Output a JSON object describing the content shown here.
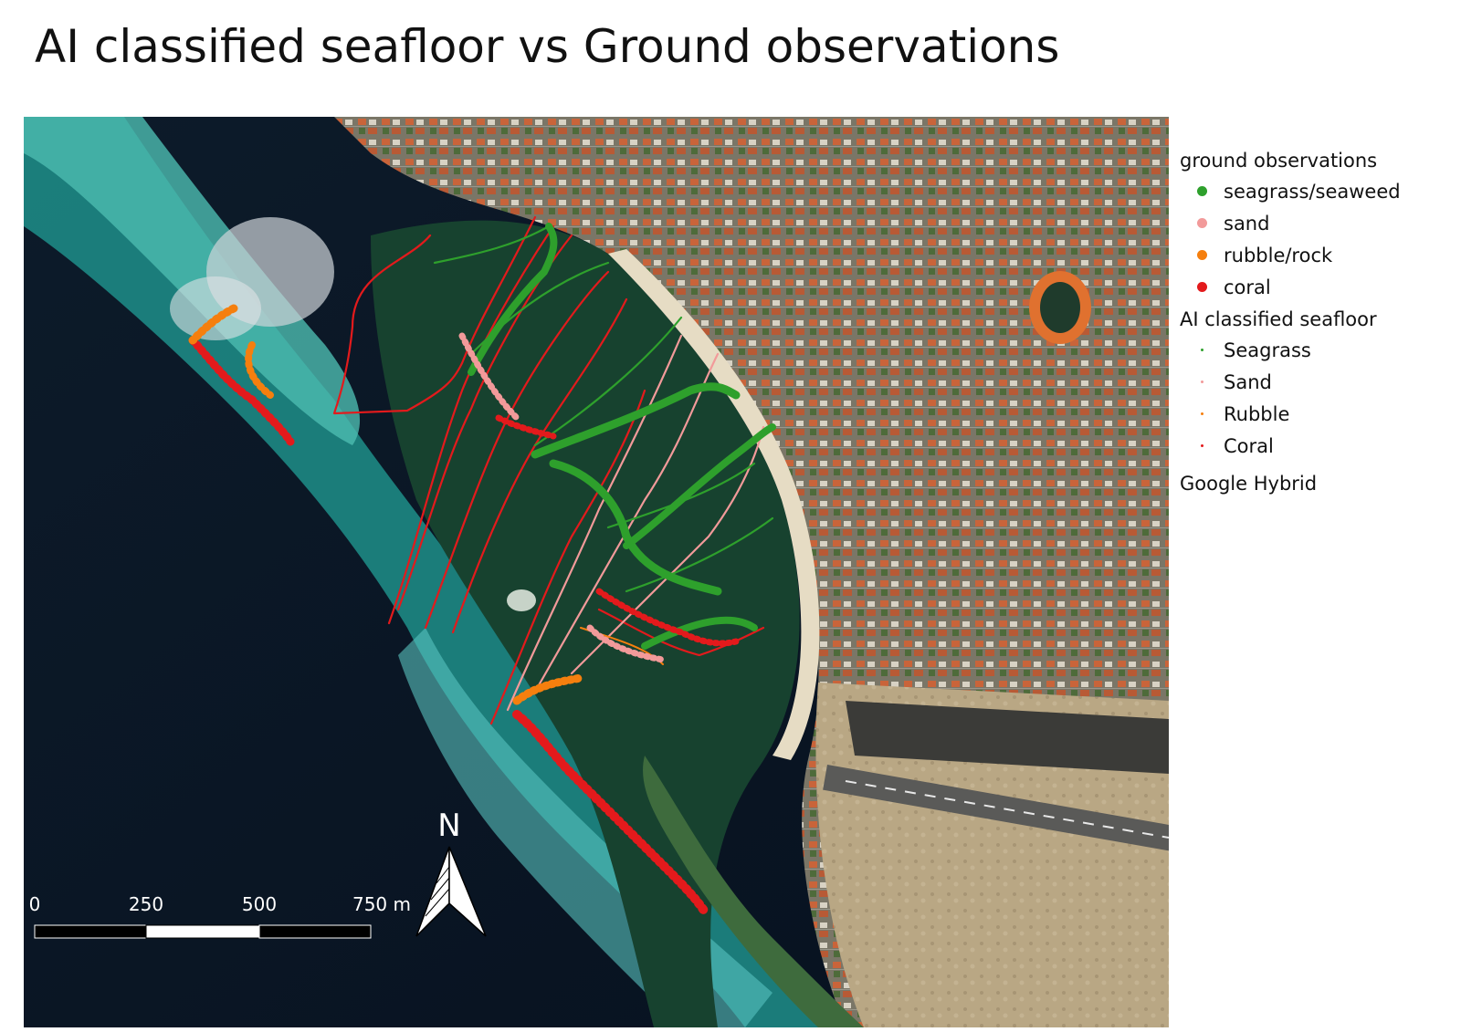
{
  "title": "AI classified seafloor vs Ground observations",
  "legend": {
    "ground_title": "ground observations",
    "ground_items": [
      {
        "label": "seagrass/seaweed",
        "color": "#2ea02c"
      },
      {
        "label": "sand",
        "color": "#f29a9a"
      },
      {
        "label": "rubble/rock",
        "color": "#f57f0e"
      },
      {
        "label": "coral",
        "color": "#e31a1c"
      }
    ],
    "ai_title": "AI classified seafloor",
    "ai_items": [
      {
        "label": "Seagrass",
        "color": "#2ea02c"
      },
      {
        "label": "Sand",
        "color": "#f29a9a"
      },
      {
        "label": "Rubble",
        "color": "#f57f0e"
      },
      {
        "label": "Coral",
        "color": "#e31a1c"
      }
    ],
    "basemap": "Google Hybrid"
  },
  "scalebar": {
    "labels": [
      "0",
      "250",
      "500",
      "750 m"
    ]
  },
  "north_arrow": {
    "label": "N"
  }
}
